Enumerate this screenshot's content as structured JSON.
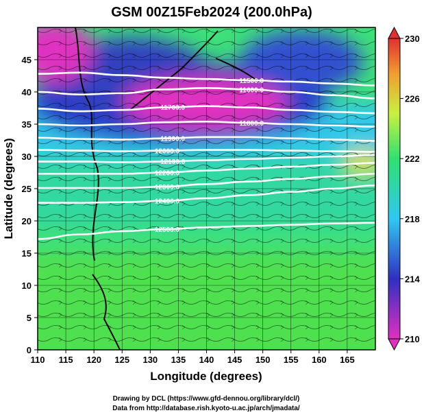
{
  "chart_data": {
    "type": "heatmap",
    "title": "GSM 00Z15Feb2024 (200.0hPa)",
    "xlabel": "Longitude (degrees)",
    "ylabel": "Latitude  (degrees)",
    "xlim": [
      110,
      170
    ],
    "ylim": [
      0,
      50
    ],
    "x_ticks": [
      110,
      115,
      120,
      125,
      130,
      135,
      140,
      145,
      150,
      155,
      160,
      165
    ],
    "y_ticks": [
      0,
      5,
      10,
      15,
      20,
      25,
      30,
      35,
      40,
      45
    ],
    "grid": true,
    "colorbar": {
      "min": 210,
      "max": 230,
      "ticks": [
        210,
        214,
        218,
        222,
        226,
        230
      ],
      "colors": [
        "#e030c0",
        "#3030c0",
        "#30c8f0",
        "#30e070",
        "#c8f040",
        "#f0a030",
        "#e03030"
      ]
    },
    "contour_labels": [
      "11500.0",
      "11600.0",
      "11700.0",
      "11800.0",
      "11900.0",
      "12000.0",
      "12100.0",
      "12200.0",
      "12300.0",
      "12400.0",
      "12500.0"
    ],
    "contours": [
      {
        "label": "11500.0",
        "lat": [
          42.8,
          43.0,
          42.6,
          42.2,
          42.0,
          41.8,
          41.6,
          41.3,
          41.0
        ]
      },
      {
        "label": "11600.0",
        "lat": [
          40.0,
          39.6,
          39.8,
          40.4,
          40.6,
          40.4,
          40.0,
          39.5,
          39.0
        ]
      },
      {
        "label": "11700.0",
        "lat": [
          37.4,
          37.0,
          37.2,
          37.6,
          37.8,
          37.6,
          37.2,
          36.9,
          36.7
        ]
      },
      {
        "label": "11800.0",
        "lat": [
          35.0,
          34.8,
          35.0,
          35.3,
          35.4,
          35.2,
          35.0,
          34.8,
          34.6
        ]
      },
      {
        "label": "11900.0",
        "lat": [
          32.9,
          32.7,
          32.6,
          32.8,
          33.0,
          33.0,
          32.8,
          32.6,
          32.4
        ]
      },
      {
        "label": "12000.0",
        "lat": [
          31.0,
          30.9,
          30.8,
          30.9,
          31.0,
          31.0,
          30.9,
          30.8,
          30.7
        ]
      },
      {
        "label": "12100.0",
        "lat": [
          29.2,
          29.2,
          29.1,
          29.2,
          29.4,
          29.6,
          29.8,
          30.0,
          30.2
        ]
      },
      {
        "label": "12200.0",
        "lat": [
          27.3,
          27.3,
          27.3,
          27.5,
          27.8,
          28.1,
          28.4,
          28.7,
          29.0
        ]
      },
      {
        "label": "12300.0",
        "lat": [
          25.1,
          25.1,
          25.1,
          25.3,
          25.7,
          26.1,
          26.5,
          26.9,
          27.3
        ]
      },
      {
        "label": "12400.0",
        "lat": [
          22.8,
          22.8,
          22.9,
          23.1,
          23.5,
          24.0,
          24.5,
          25.0,
          25.5
        ]
      },
      {
        "label": "12500.0",
        "lat": [
          17.2,
          17.9,
          18.4,
          18.7,
          19.0,
          19.2,
          19.4,
          19.6,
          19.7
        ]
      }
    ],
    "contour_lon": [
      110,
      117.5,
      125,
      132.5,
      140,
      147.5,
      155,
      162.5,
      170
    ],
    "credits": [
      "Drawing by DCL (https://www.gfd-dennou.org/library/dcl/)",
      "Data from http://database.rish.kyoto-u.ac.jp/arch/jmadata/"
    ]
  }
}
